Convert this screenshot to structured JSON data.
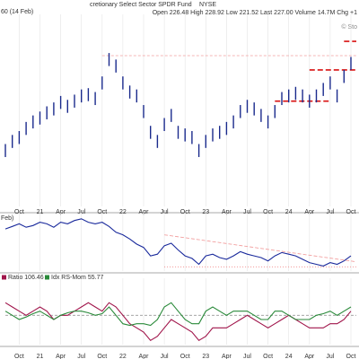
{
  "header": {
    "title": "cretionary Select Sector SPDR Fund",
    "exchange": "NYSE",
    "quote": "Open 226.48  High 228.92  Low 221.52  Last 227.00  Volume 14.7M  Chg +1",
    "source": "© Sto"
  },
  "chart_data": [
    {
      "type": "ohlc",
      "label": "60 (14 Feb)",
      "color": "#1a2a8c",
      "x": [
        "2020-08",
        "2020-09",
        "2020-10",
        "2020-11",
        "2020-12",
        "2021-01",
        "2021-02",
        "2021-03",
        "2021-04",
        "2021-05",
        "2021-06",
        "2021-07",
        "2021-08",
        "2021-09",
        "2021-10",
        "2021-11",
        "2021-12",
        "2022-01",
        "2022-02",
        "2022-03",
        "2022-04",
        "2022-05",
        "2022-06",
        "2022-07",
        "2022-08",
        "2022-09",
        "2022-10",
        "2022-11",
        "2022-12",
        "2023-01",
        "2023-02",
        "2023-03",
        "2023-04",
        "2023-05",
        "2023-06",
        "2023-07",
        "2023-08",
        "2023-09",
        "2023-10",
        "2023-11",
        "2023-12",
        "2024-01",
        "2024-02",
        "2024-03",
        "2024-04",
        "2024-05",
        "2024-06",
        "2024-07",
        "2024-08",
        "2024-09",
        "2024-10"
      ],
      "high": [
        143,
        150,
        153,
        160,
        165,
        168,
        172,
        175,
        180,
        177,
        181,
        185,
        186,
        183,
        195,
        213,
        208,
        195,
        188,
        185,
        173,
        157,
        150,
        163,
        170,
        157,
        155,
        153,
        143,
        150,
        155,
        157,
        160,
        165,
        173,
        177,
        175,
        170,
        165,
        173,
        183,
        185,
        187,
        185,
        181,
        185,
        190,
        195,
        185,
        200,
        210
      ],
      "low": [
        133,
        140,
        143,
        150,
        155,
        158,
        162,
        165,
        170,
        167,
        171,
        175,
        176,
        173,
        185,
        203,
        198,
        185,
        178,
        175,
        163,
        147,
        140,
        153,
        160,
        147,
        145,
        143,
        133,
        140,
        145,
        147,
        150,
        155,
        163,
        167,
        165,
        160,
        155,
        163,
        173,
        175,
        177,
        175,
        171,
        175,
        180,
        185,
        175,
        190,
        200
      ],
      "ylim": [
        95,
        240
      ],
      "xticks": [
        {
          "value": "2020-10",
          "label": "Oct"
        },
        {
          "value": "2021-01",
          "label": "21"
        },
        {
          "value": "2021-04",
          "label": "Apr"
        },
        {
          "value": "2021-07",
          "label": "Jul"
        },
        {
          "value": "2021-10",
          "label": "Oct"
        },
        {
          "value": "2022-01",
          "label": "22"
        },
        {
          "value": "2022-04",
          "label": "Apr"
        },
        {
          "value": "2022-07",
          "label": "Jul"
        },
        {
          "value": "2022-10",
          "label": "Oct"
        },
        {
          "value": "2023-01",
          "label": "23"
        },
        {
          "value": "2023-04",
          "label": "Apr"
        },
        {
          "value": "2023-07",
          "label": "Jul"
        },
        {
          "value": "2023-10",
          "label": "Oct"
        },
        {
          "value": "2024-01",
          "label": "24"
        },
        {
          "value": "2024-04",
          "label": "Apr"
        },
        {
          "value": "2024-07",
          "label": "Jul"
        },
        {
          "value": "2024-10",
          "label": "Oct"
        }
      ],
      "levels": [
        {
          "value": 211,
          "from": "2021-10",
          "to": "2024-10",
          "color": "#f2a0a0"
        },
        {
          "value": 176,
          "from": "2023-11",
          "to": "2024-06",
          "color": "#d81010"
        },
        {
          "value": 200,
          "from": "2024-04",
          "to": "2024-10",
          "color": "#d81010"
        },
        {
          "value": 222,
          "from": "2024-09",
          "to": "2024-10",
          "color": "#d81010"
        }
      ]
    },
    {
      "type": "line",
      "label": "Feb)",
      "x": [
        "2020-08",
        "2020-09",
        "2020-10",
        "2020-11",
        "2020-12",
        "2021-01",
        "2021-02",
        "2021-03",
        "2021-04",
        "2021-05",
        "2021-06",
        "2021-07",
        "2021-08",
        "2021-09",
        "2021-10",
        "2021-11",
        "2021-12",
        "2022-01",
        "2022-02",
        "2022-03",
        "2022-04",
        "2022-05",
        "2022-06",
        "2022-07",
        "2022-08",
        "2022-09",
        "2022-10",
        "2022-11",
        "2022-12",
        "2023-01",
        "2023-02",
        "2023-03",
        "2023-04",
        "2023-05",
        "2023-06",
        "2023-07",
        "2023-08",
        "2023-09",
        "2023-10",
        "2023-11",
        "2023-12",
        "2024-01",
        "2024-02",
        "2024-03",
        "2024-04",
        "2024-05",
        "2024-06",
        "2024-07",
        "2024-08",
        "2024-09",
        "2024-10"
      ],
      "series": [
        {
          "color": "#1a2a9c",
          "values": [
            0.43,
            0.436,
            0.442,
            0.434,
            0.438,
            0.446,
            0.442,
            0.434,
            0.446,
            0.442,
            0.45,
            0.454,
            0.446,
            0.442,
            0.446,
            0.436,
            0.422,
            0.416,
            0.406,
            0.394,
            0.386,
            0.366,
            0.37,
            0.39,
            0.396,
            0.38,
            0.366,
            0.36,
            0.346,
            0.366,
            0.37,
            0.362,
            0.358,
            0.366,
            0.376,
            0.37,
            0.366,
            0.362,
            0.354,
            0.366,
            0.374,
            0.37,
            0.366,
            0.358,
            0.35,
            0.346,
            0.342,
            0.35,
            0.346,
            0.354,
            0.366
          ]
        }
      ],
      "ylim": [
        0.33,
        0.46
      ],
      "lines": [
        {
          "from": "2022-07",
          "to": "2024-10",
          "values": [
            0.416,
            0.352
          ],
          "color": "#f2a0a0",
          "dash": "4 2"
        },
        {
          "from": "2022-07",
          "to": "2024-10",
          "values": [
            0.34,
            0.34
          ],
          "color": "#f08080",
          "dash": "1 2"
        }
      ]
    },
    {
      "type": "line",
      "x": [
        "2020-08",
        "2020-09",
        "2020-10",
        "2020-11",
        "2020-12",
        "2021-01",
        "2021-02",
        "2021-03",
        "2021-04",
        "2021-05",
        "2021-06",
        "2021-07",
        "2021-08",
        "2021-09",
        "2021-10",
        "2021-11",
        "2021-12",
        "2022-01",
        "2022-02",
        "2022-03",
        "2022-04",
        "2022-05",
        "2022-06",
        "2022-07",
        "2022-08",
        "2022-09",
        "2022-10",
        "2022-11",
        "2022-12",
        "2023-01",
        "2023-02",
        "2023-03",
        "2023-04",
        "2023-05",
        "2023-06",
        "2023-07",
        "2023-08",
        "2023-09",
        "2023-10",
        "2023-11",
        "2023-12",
        "2024-01",
        "2024-02",
        "2024-03",
        "2024-04",
        "2024-05",
        "2024-06",
        "2024-07",
        "2024-08",
        "2024-09",
        "2024-10"
      ],
      "series": [
        {
          "name": "Ratio 106.46",
          "color": "#a0144a",
          "values": [
            101.5,
            101,
            100.5,
            100,
            100.5,
            101,
            100.5,
            99.5,
            100,
            100,
            100.5,
            101,
            101.5,
            101,
            100.5,
            101.5,
            101,
            100,
            99,
            98.5,
            98,
            97,
            97.5,
            98.5,
            99.5,
            99,
            98.5,
            98,
            97,
            97.5,
            98.5,
            98.5,
            98.5,
            99,
            99.5,
            100,
            99.5,
            99,
            98.5,
            99,
            99.5,
            100,
            99.5,
            99,
            98.5,
            98.5,
            98.5,
            99,
            99,
            99.5,
            100.5
          ]
        },
        {
          "name": "Idx RS-Mom 55.77",
          "color": "#2a8a3a",
          "values": [
            100.5,
            100,
            99.5,
            99.8,
            100.2,
            100.5,
            100,
            99.5,
            100,
            100.3,
            100.5,
            100.5,
            100.3,
            100,
            100.2,
            101,
            100,
            99,
            98.8,
            99,
            99,
            98.8,
            99.5,
            101,
            101.5,
            100.5,
            99.5,
            99,
            99,
            100.5,
            101,
            100.5,
            100,
            100.5,
            100.5,
            100.5,
            100,
            99.5,
            99.5,
            100.5,
            100.5,
            100,
            99.5,
            99.5,
            99.5,
            100,
            100.2,
            100.5,
            100,
            100.5,
            101
          ]
        }
      ],
      "ylim": [
        96.5,
        104
      ],
      "lines": [
        {
          "from": "2020-08",
          "to": "2024-10",
          "values": [
            100,
            100
          ],
          "color": "#999999",
          "dash": "3 2"
        }
      ],
      "xticks": [
        {
          "value": "2020-10",
          "label": "Oct"
        },
        {
          "value": "2021-01",
          "label": "21"
        },
        {
          "value": "2021-04",
          "label": "Apr"
        },
        {
          "value": "2021-07",
          "label": "Jul"
        },
        {
          "value": "2021-10",
          "label": "Oct"
        },
        {
          "value": "2022-01",
          "label": "22"
        },
        {
          "value": "2022-04",
          "label": "Apr"
        },
        {
          "value": "2022-07",
          "label": "Jul"
        },
        {
          "value": "2022-10",
          "label": "Oct"
        },
        {
          "value": "2023-01",
          "label": "23"
        },
        {
          "value": "2023-04",
          "label": "Apr"
        },
        {
          "value": "2023-07",
          "label": "Jul"
        },
        {
          "value": "2023-10",
          "label": "Oct"
        },
        {
          "value": "2024-01",
          "label": "24"
        },
        {
          "value": "2024-04",
          "label": "Apr"
        },
        {
          "value": "2024-07",
          "label": "Jul"
        },
        {
          "value": "2024-10",
          "label": "Oct"
        }
      ]
    }
  ]
}
